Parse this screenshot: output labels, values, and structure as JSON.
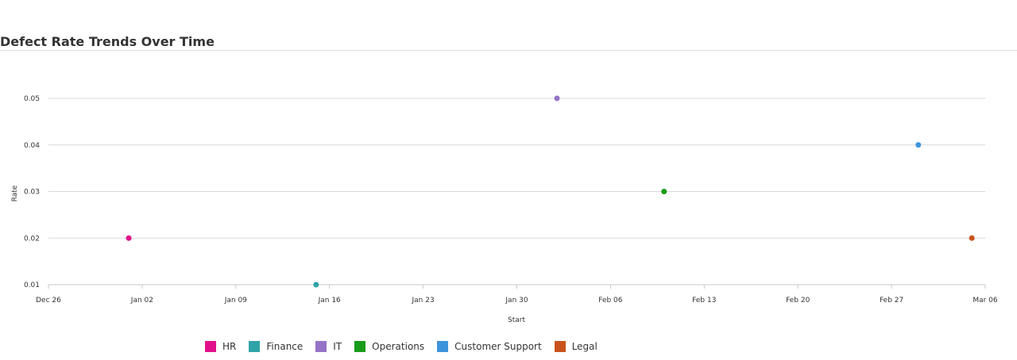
{
  "chart_data": {
    "type": "scatter",
    "title": "Defect Rate Trends Over Time",
    "xlabel": "Start",
    "ylabel": "Rate",
    "x_range": [
      "2022-12-26",
      "2023-03-06"
    ],
    "ylim": [
      0.01,
      0.05
    ],
    "x_ticks": [
      "Dec 26",
      "Jan 02",
      "Jan 09",
      "Jan 16",
      "Jan 23",
      "Jan 30",
      "Feb 06",
      "Feb 13",
      "Feb 20",
      "Feb 27",
      "Mar 06"
    ],
    "y_ticks": [
      "0.01",
      "0.02",
      "0.03",
      "0.04",
      "0.05"
    ],
    "grid": "horizontal",
    "legend_position": "bottom",
    "series": [
      {
        "name": "HR",
        "color": "#e0118a",
        "points": [
          {
            "x": "2023-01-01",
            "y": 0.02
          }
        ]
      },
      {
        "name": "Finance",
        "color": "#2ea3a8",
        "points": [
          {
            "x": "2023-01-15",
            "y": 0.01
          }
        ]
      },
      {
        "name": "IT",
        "color": "#9673c8",
        "points": [
          {
            "x": "2023-02-02",
            "y": 0.05
          }
        ]
      },
      {
        "name": "Operations",
        "color": "#1a9c1a",
        "points": [
          {
            "x": "2023-02-10",
            "y": 0.03
          }
        ]
      },
      {
        "name": "Customer Support",
        "color": "#3d94dc",
        "points": [
          {
            "x": "2023-03-01",
            "y": 0.04
          }
        ]
      },
      {
        "name": "Legal",
        "color": "#c9531c",
        "points": [
          {
            "x": "2023-03-05",
            "y": 0.02
          }
        ]
      }
    ]
  }
}
